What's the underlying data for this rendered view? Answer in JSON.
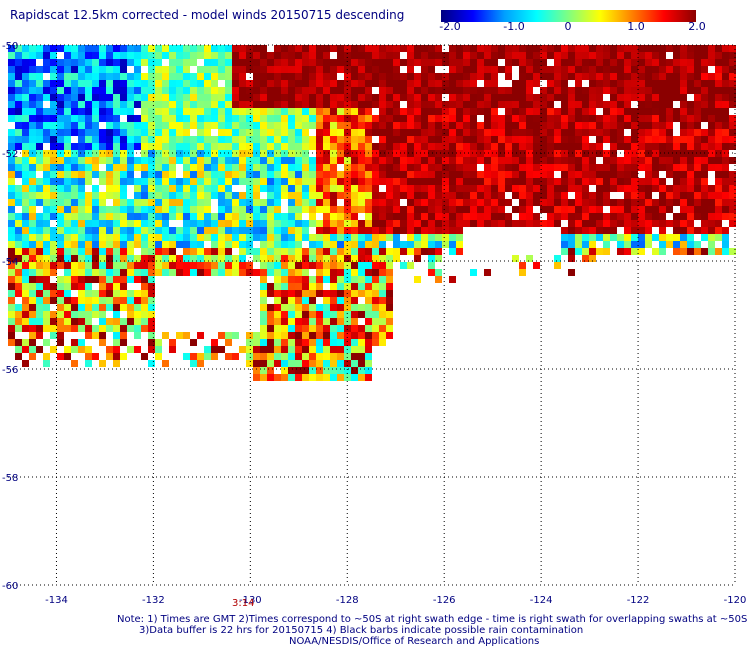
{
  "title": "Rapidscat 12.5km corrected - model winds 20150715 descending",
  "colorbar": {
    "labels": [
      "-2.0",
      "-1.0",
      "0",
      "1.0",
      "2.0"
    ],
    "range": [
      -2.0,
      2.0
    ],
    "colors": [
      "#000080",
      "#0000ff",
      "#00a0ff",
      "#00ffff",
      "#80ff80",
      "#ffff00",
      "#ff8000",
      "#ff0000",
      "#8b0000"
    ]
  },
  "map": {
    "lat_range": [
      -60,
      -50
    ],
    "lon_range": [
      -135,
      -120
    ],
    "lat_ticks": [
      "-50",
      "-52",
      "-54",
      "-56",
      "-58",
      "-60"
    ],
    "lon_ticks": [
      "-134",
      "-132",
      "-130",
      "-128",
      "-126",
      "-124",
      "-122",
      "-120"
    ],
    "gridlines": true,
    "time_label": "3:14"
  },
  "notes": {
    "line1": "Note: 1) Times are GMT 2)Times correspond to ~50S at right swath edge - time is right swath for overlapping swaths at ~50S",
    "line2": "3)Data buffer is 22 hrs for 20150715 4) Black barbs indicate possible rain contamination",
    "line3": "NOAA/NESDIS/Office of Research and Applications"
  }
}
